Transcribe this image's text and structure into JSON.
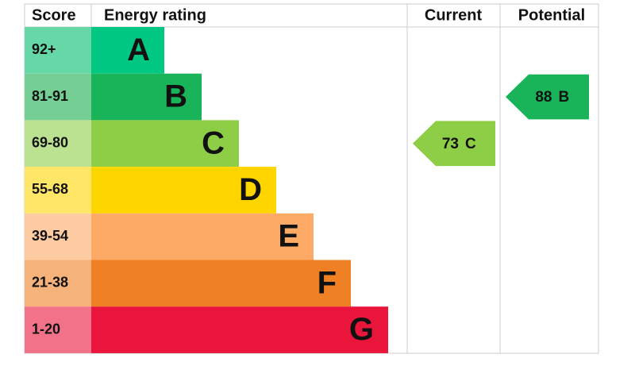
{
  "header": {
    "score": "Score",
    "rating": "Energy rating",
    "current": "Current",
    "potential": "Potential"
  },
  "bands": [
    {
      "score": "92+",
      "letter": "A",
      "color": "#00c781",
      "score_color": "#66d8a8"
    },
    {
      "score": "81-91",
      "letter": "B",
      "color": "#19b459",
      "score_color": "#75cf95"
    },
    {
      "score": "69-80",
      "letter": "C",
      "color": "#8dce46",
      "score_color": "#bbe290"
    },
    {
      "score": "55-68",
      "letter": "D",
      "color": "#ffd500",
      "score_color": "#ffe666"
    },
    {
      "score": "39-54",
      "letter": "E",
      "color": "#fcaa65",
      "score_color": "#fdcca3"
    },
    {
      "score": "21-38",
      "letter": "F",
      "color": "#ef8023",
      "score_color": "#f5b27b"
    },
    {
      "score": "1-20",
      "letter": "G",
      "color": "#e9153b",
      "score_color": "#f27389"
    }
  ],
  "current": {
    "value": 73,
    "letter": "C"
  },
  "potential": {
    "value": 88,
    "letter": "B"
  }
}
